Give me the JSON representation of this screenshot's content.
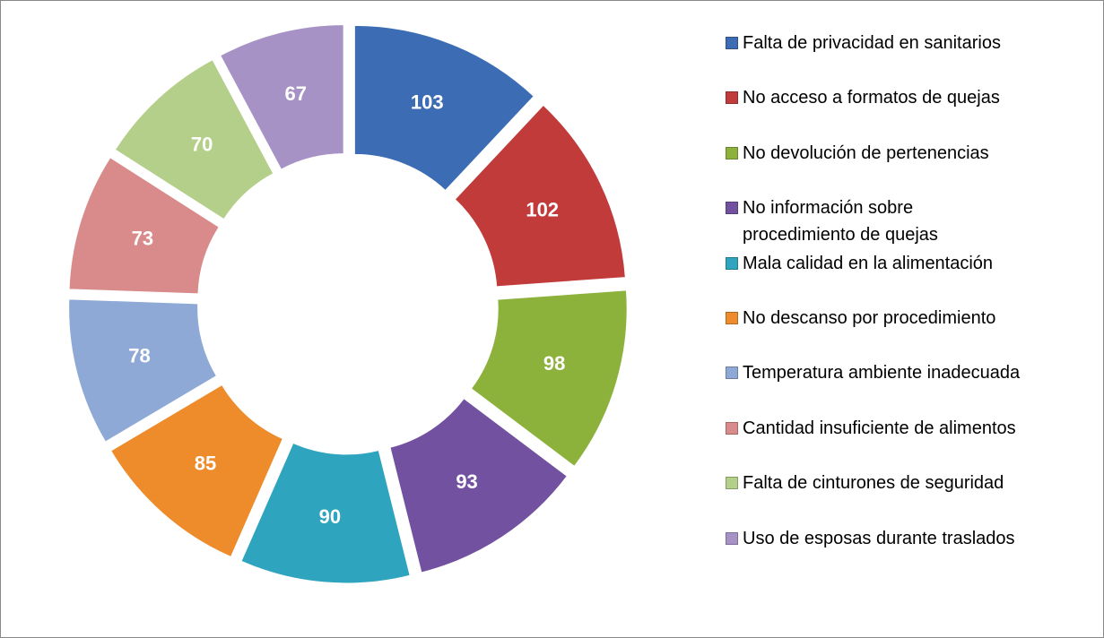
{
  "chart_data": {
    "type": "doughnut",
    "categories": [
      "Falta de privacidad en sanitarios",
      "No acceso a formatos de quejas",
      "No devolución de pertenencias",
      "No información sobre procedimiento de quejas",
      "Mala calidad en la alimentación",
      "No descanso por procedimiento",
      "Temperatura ambiente inadecuada",
      "Cantidad insuficiente de alimentos",
      "Falta de cinturones de seguridad",
      "Uso de esposas durante traslados"
    ],
    "values": [
      103,
      102,
      98,
      93,
      90,
      85,
      78,
      73,
      70,
      67
    ],
    "colors": [
      "#3c6db4",
      "#c23b3b",
      "#8cb23c",
      "#7252a0",
      "#2ea4bf",
      "#ee8b2b",
      "#8fa9d6",
      "#d98a8b",
      "#b4cf89",
      "#a792c5"
    ],
    "legend": "right"
  }
}
